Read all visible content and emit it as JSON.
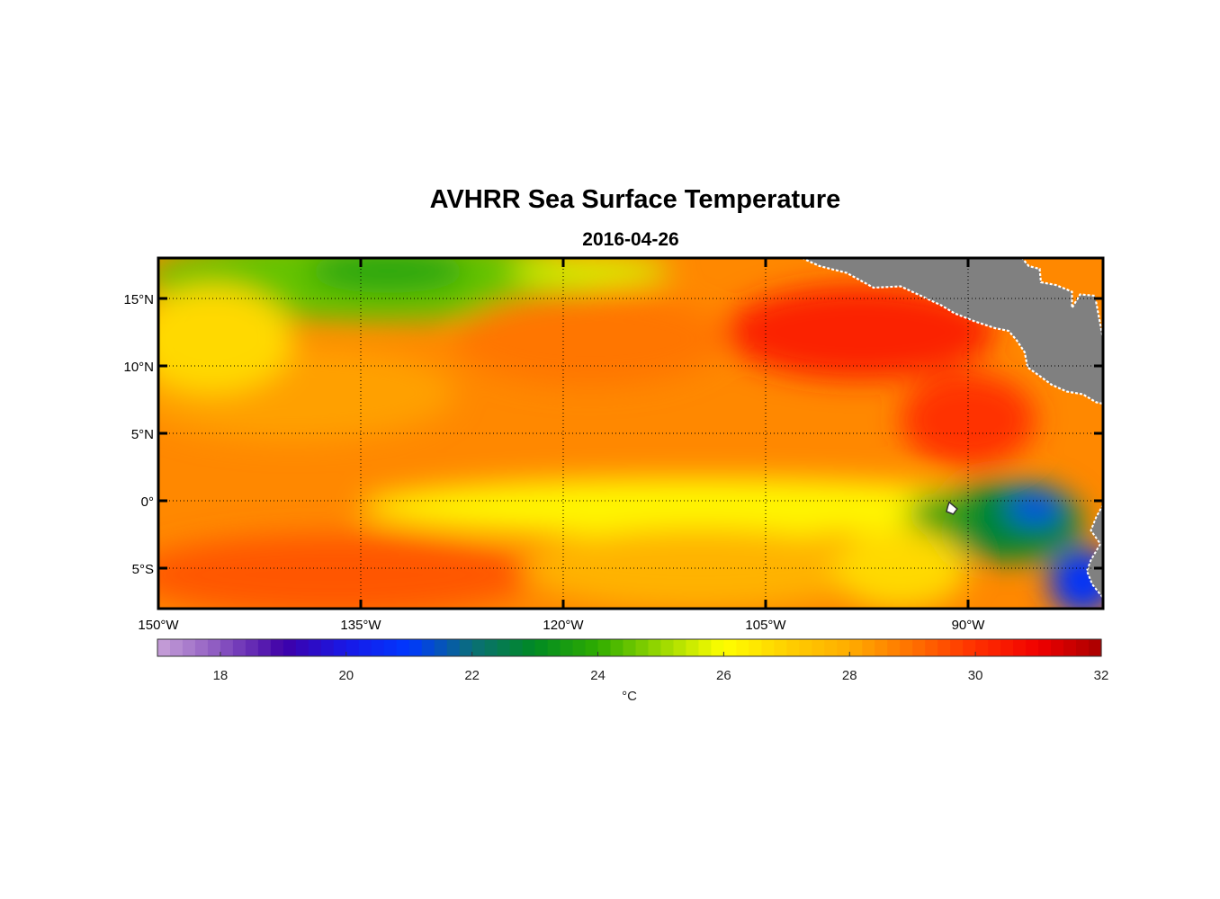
{
  "title": "AVHRR Sea Surface Temperature",
  "subtitle": "2016-04-26",
  "map": {
    "lon_range": [
      -150,
      -80
    ],
    "lat_range": [
      -8,
      18
    ],
    "lon_ticks": [
      {
        "value": -150,
        "label": "150°W"
      },
      {
        "value": -135,
        "label": "135°W"
      },
      {
        "value": -120,
        "label": "120°W"
      },
      {
        "value": -105,
        "label": "105°W"
      },
      {
        "value": -90,
        "label": "90°W"
      }
    ],
    "lat_ticks": [
      {
        "value": 15,
        "label": "15°N"
      },
      {
        "value": 10,
        "label": "10°N"
      },
      {
        "value": 5,
        "label": "5°N"
      },
      {
        "value": 0,
        "label": "0°"
      },
      {
        "value": -5,
        "label": "5°S"
      }
    ],
    "grid": "dotted",
    "land_color": "#808080",
    "coastline_color": "#ffffff"
  },
  "colorbar": {
    "range": [
      17,
      32
    ],
    "ticks": [
      18,
      20,
      22,
      24,
      26,
      28,
      30,
      32
    ],
    "label": "°C",
    "placement": "bottom",
    "colors": [
      {
        "v": 17,
        "c": "#c8a2d8"
      },
      {
        "v": 18,
        "c": "#8a55c0"
      },
      {
        "v": 19,
        "c": "#3f00a8"
      },
      {
        "v": 20,
        "c": "#1818e6"
      },
      {
        "v": 21,
        "c": "#0038ff"
      },
      {
        "v": 22,
        "c": "#0a6e78"
      },
      {
        "v": 23,
        "c": "#008a22"
      },
      {
        "v": 24,
        "c": "#2fad00"
      },
      {
        "v": 25,
        "c": "#9ad800"
      },
      {
        "v": 26,
        "c": "#ffff00"
      },
      {
        "v": 27,
        "c": "#ffd000"
      },
      {
        "v": 28,
        "c": "#ffac00"
      },
      {
        "v": 29,
        "c": "#ff7000"
      },
      {
        "v": 30,
        "c": "#ff3000"
      },
      {
        "v": 31,
        "c": "#f00000"
      },
      {
        "v": 32,
        "c": "#a80000"
      }
    ]
  },
  "sst_regions": [
    {
      "name": "northwest-cool-band",
      "lon": -134,
      "lat": 16.5,
      "rlon": 17,
      "rlat": 3.2,
      "temp": 24.5
    },
    {
      "name": "northwest-core",
      "lon": -133,
      "lat": 17,
      "rlon": 6,
      "rlat": 1.6,
      "temp": 23.8
    },
    {
      "name": "north-mid",
      "lon": -118,
      "lat": 17,
      "rlon": 6,
      "rlat": 1.2,
      "temp": 25.6
    },
    {
      "name": "north-warm-pool",
      "lon": -98,
      "lat": 12.5,
      "rlon": 10,
      "rlat": 3.5,
      "temp": 30.3
    },
    {
      "name": "east-warm",
      "lon": -90,
      "lat": 6,
      "rlon": 5,
      "rlat": 3.5,
      "temp": 30.0
    },
    {
      "name": "central-north",
      "lon": -118,
      "lat": 12,
      "rlon": 10,
      "rlat": 3.5,
      "temp": 28.9
    },
    {
      "name": "itcz-west",
      "lon": -140,
      "lat": 8,
      "rlon": 12,
      "rlat": 3.5,
      "temp": 28.2
    },
    {
      "name": "west-yellow",
      "lon": -146,
      "lat": 12,
      "rlon": 6,
      "rlat": 4,
      "temp": 26.8
    },
    {
      "name": "equatorial-tongue",
      "lon": -115,
      "lat": -1.0,
      "rlon": 9,
      "rlat": 1.2,
      "temp": 25.0
    },
    {
      "name": "equatorial-band",
      "lon": -110,
      "lat": -0.5,
      "rlon": 25,
      "rlat": 2.2,
      "temp": 26.2
    },
    {
      "name": "galapagos-cold",
      "lon": -87,
      "lat": -1.5,
      "rlon": 5.5,
      "rlat": 3,
      "temp": 22.8
    },
    {
      "name": "galapagos-core",
      "lon": -85,
      "lat": -0.5,
      "rlon": 2,
      "rlat": 1,
      "temp": 21.0
    },
    {
      "name": "peru-coast-cold",
      "lon": -81.5,
      "lat": -6,
      "rlon": 2.5,
      "rlat": 2.5,
      "temp": 20.8
    },
    {
      "name": "galapagos-west",
      "lon": -92,
      "lat": -1,
      "rlon": 2.5,
      "rlat": 1.5,
      "temp": 23.5
    },
    {
      "name": "south-warm",
      "lon": -137,
      "lat": -5.5,
      "rlon": 15,
      "rlat": 3,
      "temp": 29.4
    },
    {
      "name": "south-central",
      "lon": -110,
      "lat": -5,
      "rlon": 13,
      "rlat": 3,
      "temp": 27.8
    },
    {
      "name": "south-east",
      "lon": -95,
      "lat": -5,
      "rlon": 5,
      "rlat": 3,
      "temp": 26.8
    }
  ],
  "background_temp": 28.6
}
